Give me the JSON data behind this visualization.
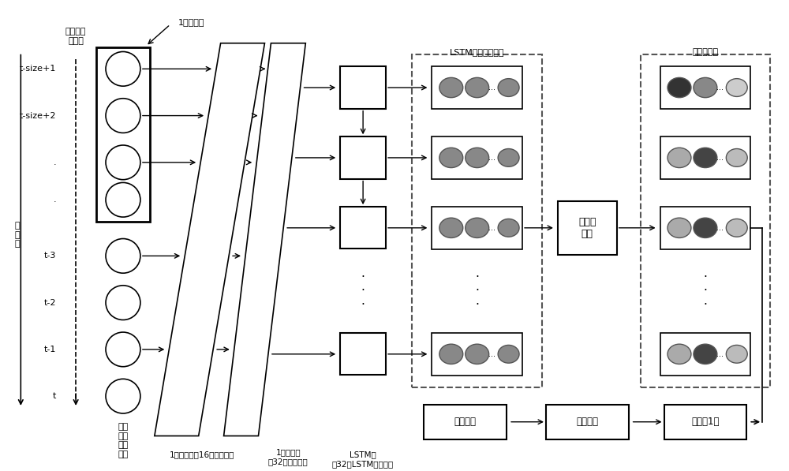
{
  "bg_color": "#ffffff",
  "fig_width": 10.0,
  "fig_height": 5.97,
  "input_labels": [
    "t-size+1",
    "t-size+2",
    ".",
    ".",
    "t-3",
    "t-2",
    "t-1",
    "t"
  ],
  "slide_label": "卷积核滑\n动方向",
  "kernel_label": "1维卷积核",
  "conv1_label": "1维卷积层（16个卷积核）",
  "conv2_label": "1维卷积层（32个卷积核）",
  "lstm_label": "LSTM层\n（32个LSTM神经元）",
  "lstm_output_label": "LSTM隐层输出向量",
  "attention_label": "注意力\n机制",
  "attention_vec_label": "注意力向量",
  "series_label": "发电\n功率\n时间\n序列",
  "time_label": "时\n间\n轴",
  "predict_label": "预测输出",
  "fc_label": "全连接层",
  "flatten_label": "展开成1维",
  "lstm_out_circle_colors": [
    [
      "#888888",
      "#888888",
      "#888888"
    ],
    [
      "#888888",
      "#888888",
      "#888888"
    ],
    [
      "#888888",
      "#888888",
      "#888888"
    ],
    [
      "#888888",
      "#888888",
      "#888888"
    ]
  ],
  "attn_out_circle_colors": [
    [
      "#333333",
      "#888888",
      "#cccccc"
    ],
    [
      "#aaaaaa",
      "#444444",
      "#bbbbbb"
    ],
    [
      "#aaaaaa",
      "#444444",
      "#bbbbbb"
    ],
    [
      "#aaaaaa",
      "#444444",
      "#bbbbbb"
    ]
  ]
}
